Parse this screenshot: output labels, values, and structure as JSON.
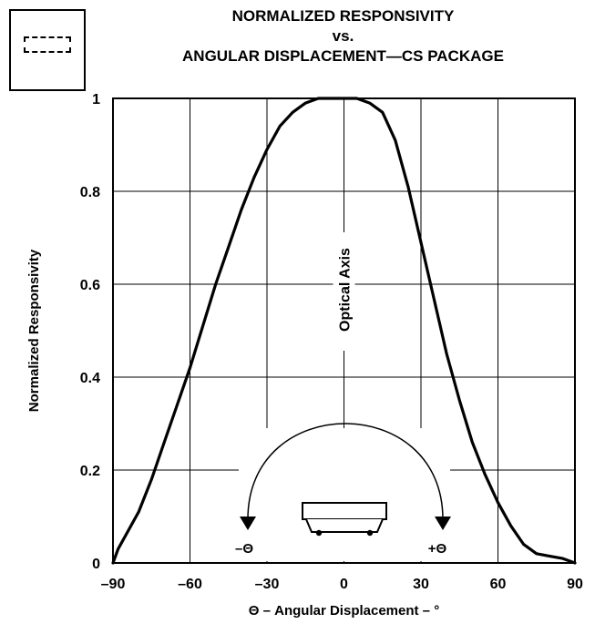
{
  "title_lines": [
    "NORMALIZED RESPONSIVITY",
    "vs.",
    "ANGULAR DISPLACEMENT—CS PACKAGE"
  ],
  "chart_data": {
    "type": "line",
    "title": "NORMALIZED RESPONSIVITY vs. ANGULAR DISPLACEMENT—CS PACKAGE",
    "xlabel": "Θ – Angular Displacement – °",
    "ylabel": "Normalized Responsivity",
    "xlim": [
      -90,
      90
    ],
    "ylim": [
      0,
      1
    ],
    "xticks": [
      -90,
      -60,
      -30,
      0,
      30,
      60,
      90
    ],
    "xtick_labels": [
      "–90",
      "–60",
      "–30",
      "0",
      "30",
      "60",
      "90"
    ],
    "yticks": [
      0,
      0.2,
      0.4,
      0.6,
      0.8,
      1
    ],
    "ytick_labels": [
      "0",
      "0.2",
      "0.4",
      "0.6",
      "0.8",
      "1"
    ],
    "grid": true,
    "annotations": {
      "optical_axis": "Optical Axis",
      "minus_theta": "–Θ",
      "plus_theta": "+Θ"
    },
    "series": [
      {
        "x": [
          -90,
          -88,
          -85,
          -80,
          -75,
          -70,
          -65,
          -60,
          -55,
          -50,
          -45,
          -40,
          -35,
          -30,
          -25,
          -20,
          -15,
          -10,
          -5,
          0,
          5,
          10,
          15,
          20,
          25,
          30,
          35,
          40,
          45,
          50,
          55,
          60,
          65,
          70,
          75,
          80,
          85,
          90
        ],
        "y": [
          0.0,
          0.03,
          0.06,
          0.11,
          0.18,
          0.26,
          0.34,
          0.42,
          0.51,
          0.6,
          0.68,
          0.76,
          0.83,
          0.89,
          0.94,
          0.97,
          0.99,
          1.0,
          1.0,
          1.0,
          1.0,
          0.99,
          0.97,
          0.91,
          0.81,
          0.69,
          0.57,
          0.45,
          0.35,
          0.26,
          0.19,
          0.13,
          0.08,
          0.04,
          0.02,
          0.015,
          0.01,
          0.0
        ]
      }
    ]
  }
}
